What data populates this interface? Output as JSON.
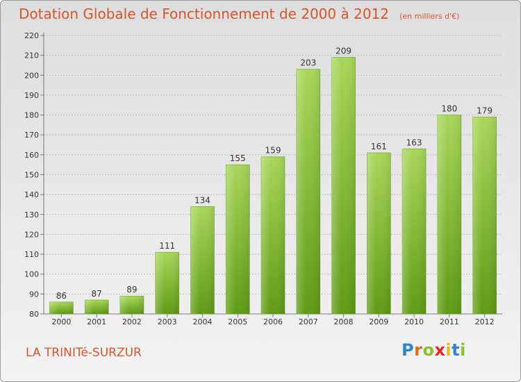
{
  "title": "Dotation Globale de Fonctionnement de 2000 à 2012",
  "unit_note": "(en milliers d'€)",
  "commune": "LA TRINITé-SURZUR",
  "logo": {
    "letters": [
      "P",
      "r",
      "o",
      "x",
      "i",
      "t",
      "i"
    ],
    "colors": [
      "#2e86c9",
      "#e36b1f",
      "#8bc02c",
      "#e12b25",
      "#f2b50f",
      "#2e86c9",
      "#8bc02c"
    ]
  },
  "colors": {
    "bar_top": "#a8d75a",
    "bar_bottom": "#5f9a14",
    "title": "#d9542b"
  },
  "chart_data": {
    "type": "bar",
    "title": "Dotation Globale de Fonctionnement de 2000 à 2012",
    "categories": [
      "2000",
      "2001",
      "2002",
      "2003",
      "2004",
      "2005",
      "2006",
      "2007",
      "2008",
      "2009",
      "2010",
      "2011",
      "2012"
    ],
    "values": [
      86,
      87,
      89,
      111,
      134,
      155,
      159,
      203,
      209,
      161,
      163,
      180,
      179
    ],
    "ylim": [
      80,
      220
    ],
    "yticks": [
      80,
      90,
      100,
      110,
      120,
      130,
      140,
      150,
      160,
      170,
      180,
      190,
      200,
      210,
      220
    ],
    "grid": true,
    "legend": "none"
  }
}
